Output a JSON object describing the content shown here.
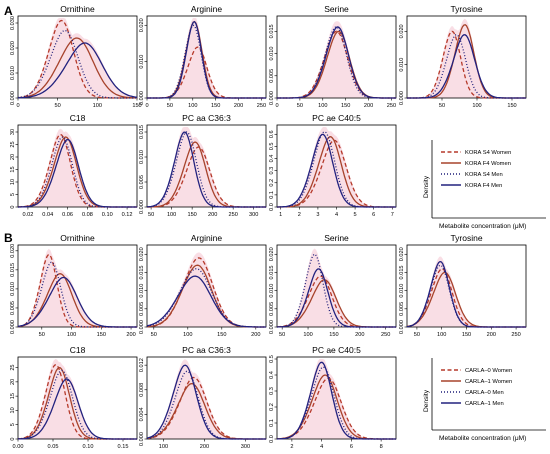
{
  "panel_letters": [
    "A",
    "B"
  ],
  "legend_top": {
    "entries": [
      "KORA S4 Women",
      "KORA F4 Women",
      "KORA S4 Men",
      "KORA F4 Men"
    ],
    "y_label": "Density",
    "x_label": "Metabolite concentration (μM)"
  },
  "legend_bottom": {
    "entries": [
      "CARLA–0 Women",
      "CARLA–1 Women",
      "CARLA–0 Men",
      "CARLA–1 Men"
    ],
    "y_label": "Density",
    "x_label": "Metabolite concentration (μM)"
  },
  "series_styles": [
    {
      "color": "#b5392a",
      "dash": "dashed"
    },
    {
      "color": "#a7432c",
      "dash": "solid"
    },
    {
      "color": "#1f1f7a",
      "dash": "dotted"
    },
    {
      "color": "#22227f",
      "dash": "solid"
    }
  ],
  "band_color": "#f2b6c6",
  "chart_data": [
    {
      "type": "line",
      "block": "A",
      "title": "Ornithine",
      "xlim": [
        0,
        150
      ],
      "xticks": [
        "0",
        "50",
        "100",
        "150"
      ],
      "ylim": [
        0,
        0.032
      ],
      "yticks": [
        "0.000",
        "0.010",
        "0.020",
        "0.030"
      ],
      "series": [
        {
          "mu": 52,
          "sd": 16,
          "skew": 0.2,
          "peak": 0.031
        },
        {
          "mu": 70,
          "sd": 22,
          "skew": 0.2,
          "peak": 0.024
        },
        {
          "mu": 55,
          "sd": 18,
          "skew": 0.25,
          "peak": 0.027
        },
        {
          "mu": 78,
          "sd": 24,
          "skew": 0.3,
          "peak": 0.022
        }
      ]
    },
    {
      "type": "line",
      "block": "A",
      "title": "Arginine",
      "xlim": [
        0,
        260
      ],
      "xticks": [
        "0",
        "50",
        "100",
        "150",
        "200",
        "250"
      ],
      "ylim": [
        0,
        0.022
      ],
      "yticks": [
        "0.000",
        "0.010",
        "0.020"
      ],
      "series": [
        {
          "mu": 105,
          "sd": 22,
          "skew": 0.3,
          "peak": 0.014
        },
        {
          "mu": 100,
          "sd": 18,
          "skew": 0.2,
          "peak": 0.021
        },
        {
          "mu": 98,
          "sd": 18,
          "skew": 0.2,
          "peak": 0.02
        },
        {
          "mu": 100,
          "sd": 17,
          "skew": 0.2,
          "peak": 0.021
        }
      ]
    },
    {
      "type": "line",
      "block": "A",
      "title": "Serine",
      "xlim": [
        0,
        260
      ],
      "xticks": [
        "0",
        "50",
        "100",
        "150",
        "200",
        "250"
      ],
      "ylim": [
        0,
        0.018
      ],
      "yticks": [
        "0.000",
        "0.005",
        "0.010",
        "0.015"
      ],
      "series": [
        {
          "mu": 125,
          "sd": 26,
          "skew": 0.2,
          "peak": 0.015
        },
        {
          "mu": 130,
          "sd": 25,
          "skew": 0.2,
          "peak": 0.015
        },
        {
          "mu": 125,
          "sd": 24,
          "skew": 0.2,
          "peak": 0.016
        },
        {
          "mu": 128,
          "sd": 25,
          "skew": 0.2,
          "peak": 0.016
        }
      ]
    },
    {
      "type": "line",
      "block": "A",
      "title": "Tyrosine",
      "xlim": [
        0,
        170
      ],
      "xticks": [
        "50",
        "100",
        "150"
      ],
      "ylim": [
        0,
        0.024
      ],
      "yticks": [
        "0.000",
        "0.010",
        "0.020"
      ],
      "series": [
        {
          "mu": 62,
          "sd": 13,
          "skew": 0.2,
          "peak": 0.02
        },
        {
          "mu": 80,
          "sd": 14,
          "skew": 0.2,
          "peak": 0.022
        },
        {
          "mu": 68,
          "sd": 14,
          "skew": 0.2,
          "peak": 0.019
        },
        {
          "mu": 78,
          "sd": 16,
          "skew": 0.3,
          "peak": 0.019
        }
      ]
    },
    {
      "type": "line",
      "block": "A",
      "title": "C18",
      "xlim": [
        0.01,
        0.13
      ],
      "xticks": [
        "0.02",
        "0.04",
        "0.06",
        "0.08",
        "0.10",
        "0.12"
      ],
      "ylim": [
        0,
        32
      ],
      "yticks": [
        "0",
        "5",
        "10",
        "15",
        "20",
        "25",
        "30"
      ],
      "series": [
        {
          "mu": 0.05,
          "sd": 0.011,
          "skew": 0.3,
          "peak": 29
        },
        {
          "mu": 0.055,
          "sd": 0.012,
          "skew": 0.3,
          "peak": 28
        },
        {
          "mu": 0.052,
          "sd": 0.011,
          "skew": 0.3,
          "peak": 28
        },
        {
          "mu": 0.057,
          "sd": 0.012,
          "skew": 0.3,
          "peak": 27
        }
      ]
    },
    {
      "type": "line",
      "block": "A",
      "title": "PC aa C36:3",
      "xlim": [
        40,
        330
      ],
      "xticks": [
        "50",
        "100",
        "150",
        "200",
        "250",
        "300"
      ],
      "ylim": [
        0,
        0.016
      ],
      "yticks": [
        "0.000",
        "0.005",
        "0.010",
        "0.015"
      ],
      "series": [
        {
          "mu": 158,
          "sd": 30,
          "skew": 0.3,
          "peak": 0.012
        },
        {
          "mu": 150,
          "sd": 28,
          "skew": 0.3,
          "peak": 0.013
        },
        {
          "mu": 130,
          "sd": 26,
          "skew": 0.3,
          "peak": 0.015
        },
        {
          "mu": 125,
          "sd": 25,
          "skew": 0.3,
          "peak": 0.015
        }
      ]
    },
    {
      "type": "line",
      "block": "A",
      "title": "PC ae C40:5",
      "xlim": [
        0.8,
        7.2
      ],
      "xticks": [
        "1",
        "2",
        "3",
        "4",
        "5",
        "6",
        "7"
      ],
      "ylim": [
        0,
        0.66
      ],
      "yticks": [
        "0.0",
        "0.1",
        "0.2",
        "0.3",
        "0.4",
        "0.5",
        "0.6"
      ],
      "series": [
        {
          "mu": 3.7,
          "sd": 0.7,
          "skew": 0.3,
          "peak": 0.55
        },
        {
          "mu": 3.5,
          "sd": 0.65,
          "skew": 0.3,
          "peak": 0.58
        },
        {
          "mu": 3.2,
          "sd": 0.6,
          "skew": 0.3,
          "peak": 0.62
        },
        {
          "mu": 3.1,
          "sd": 0.6,
          "skew": 0.3,
          "peak": 0.6
        }
      ]
    },
    {
      "type": "line",
      "block": "B",
      "title": "Ornithine",
      "xlim": [
        10,
        210
      ],
      "xticks": [
        "50",
        "100",
        "150",
        "200"
      ],
      "ylim": [
        0,
        0.021
      ],
      "yticks": [
        "0.000",
        "0.005",
        "0.010",
        "0.015",
        "0.020"
      ],
      "series": [
        {
          "mu": 58,
          "sd": 15,
          "skew": 0.3,
          "peak": 0.019
        },
        {
          "mu": 75,
          "sd": 22,
          "skew": 0.3,
          "peak": 0.014
        },
        {
          "mu": 62,
          "sd": 17,
          "skew": 0.3,
          "peak": 0.017
        },
        {
          "mu": 80,
          "sd": 25,
          "skew": 0.3,
          "peak": 0.013
        }
      ]
    },
    {
      "type": "line",
      "block": "B",
      "title": "Arginine",
      "xlim": [
        40,
        215
      ],
      "xticks": [
        "50",
        "100",
        "150",
        "200"
      ],
      "ylim": [
        0,
        0.022
      ],
      "yticks": [
        "0.000",
        "0.005",
        "0.010",
        "0.015",
        "0.020"
      ],
      "series": [
        {
          "mu": 112,
          "sd": 22,
          "skew": 0.2,
          "peak": 0.019
        },
        {
          "mu": 110,
          "sd": 22,
          "skew": 0.2,
          "peak": 0.017
        },
        {
          "mu": 108,
          "sd": 24,
          "skew": 0.2,
          "peak": 0.016
        },
        {
          "mu": 106,
          "sd": 25,
          "skew": 0.2,
          "peak": 0.014
        }
      ]
    },
    {
      "type": "line",
      "block": "B",
      "title": "Serine",
      "xlim": [
        40,
        270
      ],
      "xticks": [
        "50",
        "100",
        "150",
        "200",
        "250"
      ],
      "ylim": [
        0,
        0.022
      ],
      "yticks": [
        "0.000",
        "0.005",
        "0.010",
        "0.015",
        "0.020"
      ],
      "series": [
        {
          "mu": 118,
          "sd": 24,
          "skew": 0.3,
          "peak": 0.014
        },
        {
          "mu": 125,
          "sd": 25,
          "skew": 0.3,
          "peak": 0.013
        },
        {
          "mu": 108,
          "sd": 18,
          "skew": 0.3,
          "peak": 0.02
        },
        {
          "mu": 115,
          "sd": 20,
          "skew": 0.3,
          "peak": 0.016
        }
      ]
    },
    {
      "type": "line",
      "block": "B",
      "title": "Tyrosine",
      "xlim": [
        30,
        270
      ],
      "xticks": [
        "50",
        "100",
        "150",
        "200",
        "250"
      ],
      "ylim": [
        0,
        0.022
      ],
      "yticks": [
        "0.000",
        "0.005",
        "0.010",
        "0.015",
        "0.020"
      ],
      "series": [
        {
          "mu": 95,
          "sd": 22,
          "skew": 0.3,
          "peak": 0.016
        },
        {
          "mu": 100,
          "sd": 24,
          "skew": 0.3,
          "peak": 0.015
        },
        {
          "mu": 92,
          "sd": 20,
          "skew": 0.3,
          "peak": 0.017
        },
        {
          "mu": 92,
          "sd": 20,
          "skew": 0.3,
          "peak": 0.018
        }
      ]
    },
    {
      "type": "line",
      "block": "B",
      "title": "C18",
      "xlim": [
        0,
        0.17
      ],
      "xticks": [
        "0.00",
        "0.05",
        "0.10",
        "0.15"
      ],
      "ylim": [
        0,
        28
      ],
      "yticks": [
        "0",
        "5",
        "10",
        "15",
        "20",
        "25"
      ],
      "series": [
        {
          "mu": 0.05,
          "sd": 0.015,
          "skew": 0.3,
          "peak": 26
        },
        {
          "mu": 0.055,
          "sd": 0.016,
          "skew": 0.3,
          "peak": 25
        },
        {
          "mu": 0.058,
          "sd": 0.017,
          "skew": 0.3,
          "peak": 24
        },
        {
          "mu": 0.065,
          "sd": 0.018,
          "skew": 0.3,
          "peak": 21
        }
      ]
    },
    {
      "type": "line",
      "block": "B",
      "title": "PC aa C36:3",
      "xlim": [
        60,
        350
      ],
      "xticks": [
        "100",
        "200",
        "300"
      ],
      "ylim": [
        0,
        0.013
      ],
      "yticks": [
        "0.000",
        "0.004",
        "0.008",
        "0.012"
      ],
      "series": [
        {
          "mu": 165,
          "sd": 35,
          "skew": 0.3,
          "peak": 0.01
        },
        {
          "mu": 160,
          "sd": 35,
          "skew": 0.3,
          "peak": 0.009
        },
        {
          "mu": 150,
          "sd": 30,
          "skew": 0.3,
          "peak": 0.011
        },
        {
          "mu": 145,
          "sd": 30,
          "skew": 0.3,
          "peak": 0.012
        }
      ]
    },
    {
      "type": "line",
      "block": "B",
      "title": "PC ae C40:5",
      "xlim": [
        1,
        9
      ],
      "xticks": [
        "2",
        "4",
        "6",
        "8"
      ],
      "ylim": [
        0,
        0.5
      ],
      "yticks": [
        "0.0",
        "0.1",
        "0.2",
        "0.3",
        "0.4",
        "0.5"
      ],
      "series": [
        {
          "mu": 4.2,
          "sd": 0.95,
          "skew": 0.3,
          "peak": 0.38
        },
        {
          "mu": 4.0,
          "sd": 0.9,
          "skew": 0.3,
          "peak": 0.4
        },
        {
          "mu": 3.9,
          "sd": 0.8,
          "skew": 0.3,
          "peak": 0.45
        },
        {
          "mu": 3.8,
          "sd": 0.75,
          "skew": 0.3,
          "peak": 0.48
        }
      ]
    }
  ]
}
